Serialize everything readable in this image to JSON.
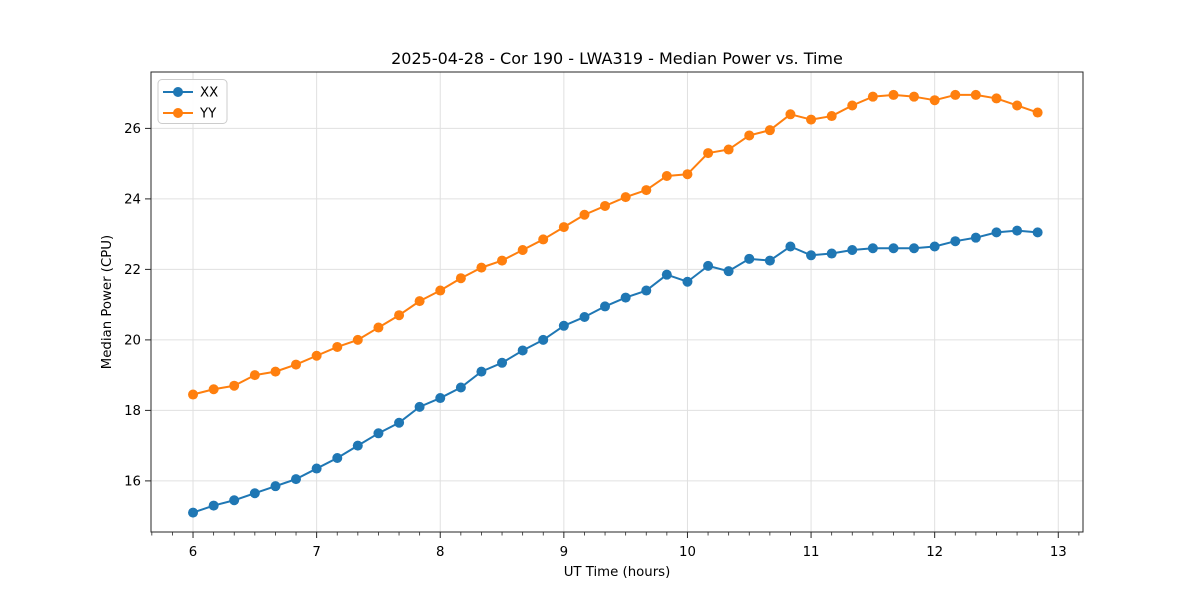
{
  "chart_data": {
    "type": "line",
    "title": "2025-04-28 - Cor 190 - LWA319 - Median Power vs. Time",
    "xlabel": "UT Time (hours)",
    "ylabel": "Median Power (CPU)",
    "xlim": [
      5.66,
      13.2
    ],
    "ylim": [
      14.55,
      27.6
    ],
    "x_ticks": [
      6,
      7,
      8,
      9,
      10,
      11,
      12,
      13
    ],
    "y_ticks": [
      16,
      18,
      20,
      22,
      24,
      26
    ],
    "x_minor_tick_step_hours": 0.1667,
    "grid": true,
    "legend_position": "upper-left",
    "background_color": "#ffffff",
    "grid_color": "#e0e0e0",
    "spine_color": "#262626",
    "x": [
      6.0,
      6.167,
      6.333,
      6.5,
      6.667,
      6.833,
      7.0,
      7.167,
      7.333,
      7.5,
      7.667,
      7.833,
      8.0,
      8.167,
      8.333,
      8.5,
      8.667,
      8.833,
      9.0,
      9.167,
      9.333,
      9.5,
      9.667,
      9.833,
      10.0,
      10.167,
      10.333,
      10.5,
      10.667,
      10.833,
      11.0,
      11.167,
      11.333,
      11.5,
      11.667,
      11.833,
      12.0,
      12.167,
      12.333,
      12.5,
      12.667,
      12.833
    ],
    "series": [
      {
        "name": "XX",
        "color": "#1f77b4",
        "marker": "circle",
        "values": [
          15.1,
          15.3,
          15.45,
          15.65,
          15.85,
          16.05,
          16.35,
          16.65,
          17.0,
          17.35,
          17.65,
          18.1,
          18.35,
          18.65,
          19.1,
          19.35,
          19.7,
          20.0,
          20.4,
          20.65,
          20.95,
          21.2,
          21.4,
          21.85,
          21.65,
          22.1,
          21.95,
          22.3,
          22.25,
          22.65,
          22.4,
          22.45,
          22.55,
          22.6,
          22.6,
          22.6,
          22.65,
          22.8,
          22.9,
          23.05,
          23.1,
          23.05
        ]
      },
      {
        "name": "YY",
        "color": "#ff7f0e",
        "marker": "circle",
        "values": [
          18.45,
          18.6,
          18.7,
          19.0,
          19.1,
          19.3,
          19.55,
          19.8,
          20.0,
          20.35,
          20.7,
          21.1,
          21.4,
          21.75,
          22.05,
          22.25,
          22.55,
          22.85,
          23.2,
          23.55,
          23.8,
          24.05,
          24.25,
          24.65,
          24.7,
          25.3,
          25.4,
          25.8,
          25.95,
          26.4,
          26.25,
          26.35,
          26.65,
          26.9,
          26.95,
          26.9,
          26.8,
          26.95,
          26.95,
          26.85,
          26.65,
          26.45
        ]
      }
    ]
  }
}
